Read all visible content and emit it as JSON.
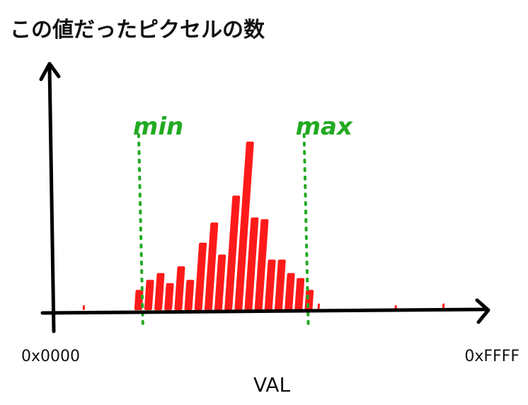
{
  "chart_data": {
    "type": "bar",
    "title": "この値だったピクセルの数",
    "xlabel": "VAL",
    "ylabel": "",
    "x_tick_labels": [
      "0x0000",
      "0xFFFF"
    ],
    "xlim": [
      0,
      65535
    ],
    "ylim": [
      0,
      100
    ],
    "grid": false,
    "legend": "none",
    "series": [
      {
        "color": "#ff1a1a",
        "x": [
          4300,
          13000,
          14600,
          16200,
          17800,
          19400,
          21000,
          22600,
          24200,
          25800,
          27400,
          29000,
          30600,
          32200,
          33800,
          35400,
          37000,
          38600,
          40200,
          41800,
          54100,
          61700
        ],
        "values": [
          3,
          12,
          18,
          22,
          16,
          26,
          18,
          40,
          52,
          33,
          68,
          100,
          55,
          54,
          30,
          30,
          22,
          19,
          12,
          4,
          3,
          4
        ]
      }
    ],
    "markers": [
      {
        "label": "min",
        "x": 13100,
        "color": "#22aa22"
      },
      {
        "label": "max",
        "x": 39500,
        "color": "#22aa22"
      }
    ]
  }
}
